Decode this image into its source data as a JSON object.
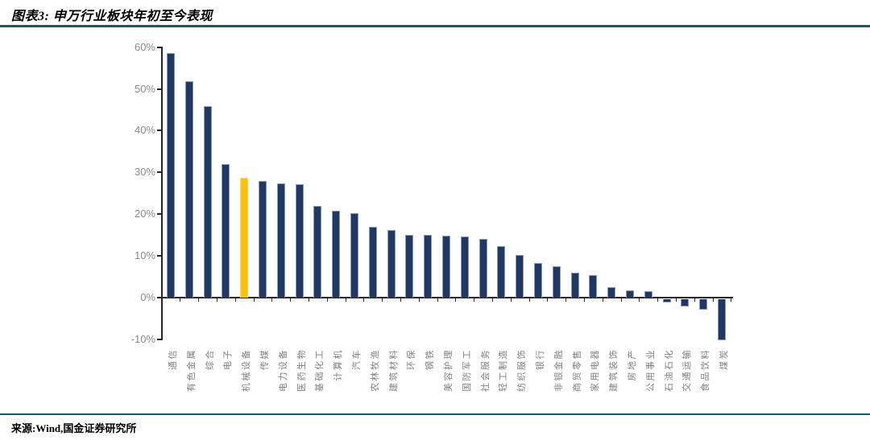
{
  "header": {
    "title": "图表3: 申万行业板块年初至今表现"
  },
  "footer": {
    "source": "来源:Wind,国金证券研究所"
  },
  "colors": {
    "rule_accent": "#175470",
    "bar_navy": "#1F3864",
    "bar_highlight_orange": "#FFC000",
    "axis": "#262626",
    "tick_label_gray": "#8a8a8a",
    "category_label_gray": "#7f7f7f"
  },
  "chart_data": {
    "type": "bar",
    "title": "申万行业板块年初至今表现",
    "xlabel": "",
    "ylabel": "",
    "unit": "%",
    "ylim": [
      -10,
      60
    ],
    "y_tick_labels": [
      "60%",
      "50%",
      "40%",
      "30%",
      "20%",
      "10%",
      "0%",
      "-10%"
    ],
    "grid": false,
    "legend": "none",
    "categories": [
      "通信",
      "有色金属",
      "综合",
      "电子",
      "机械设备",
      "传媒",
      "电力设备",
      "医药生物",
      "基础化工",
      "计算机",
      "汽车",
      "农林牧渔",
      "建筑材料",
      "环保",
      "钢铁",
      "美容护理",
      "国防军工",
      "社会服务",
      "轻工制造",
      "纺织服饰",
      "银行",
      "非银金融",
      "商贸零售",
      "家用电器",
      "建筑装饰",
      "房地产",
      "公用事业",
      "石油石化",
      "交通运输",
      "食品饮料",
      "煤炭"
    ],
    "values": [
      58.6,
      51.9,
      45.8,
      31.9,
      28.7,
      27.9,
      27.3,
      27.1,
      22.0,
      20.9,
      20.2,
      16.9,
      16.1,
      15.1,
      15.0,
      14.9,
      14.6,
      14.1,
      12.3,
      10.3,
      8.3,
      7.5,
      5.9,
      5.4,
      2.6,
      1.8,
      1.5,
      -0.7,
      -1.7,
      -2.6,
      -9.9
    ],
    "highlight_index": 4,
    "highlight_category": "机械设备"
  }
}
